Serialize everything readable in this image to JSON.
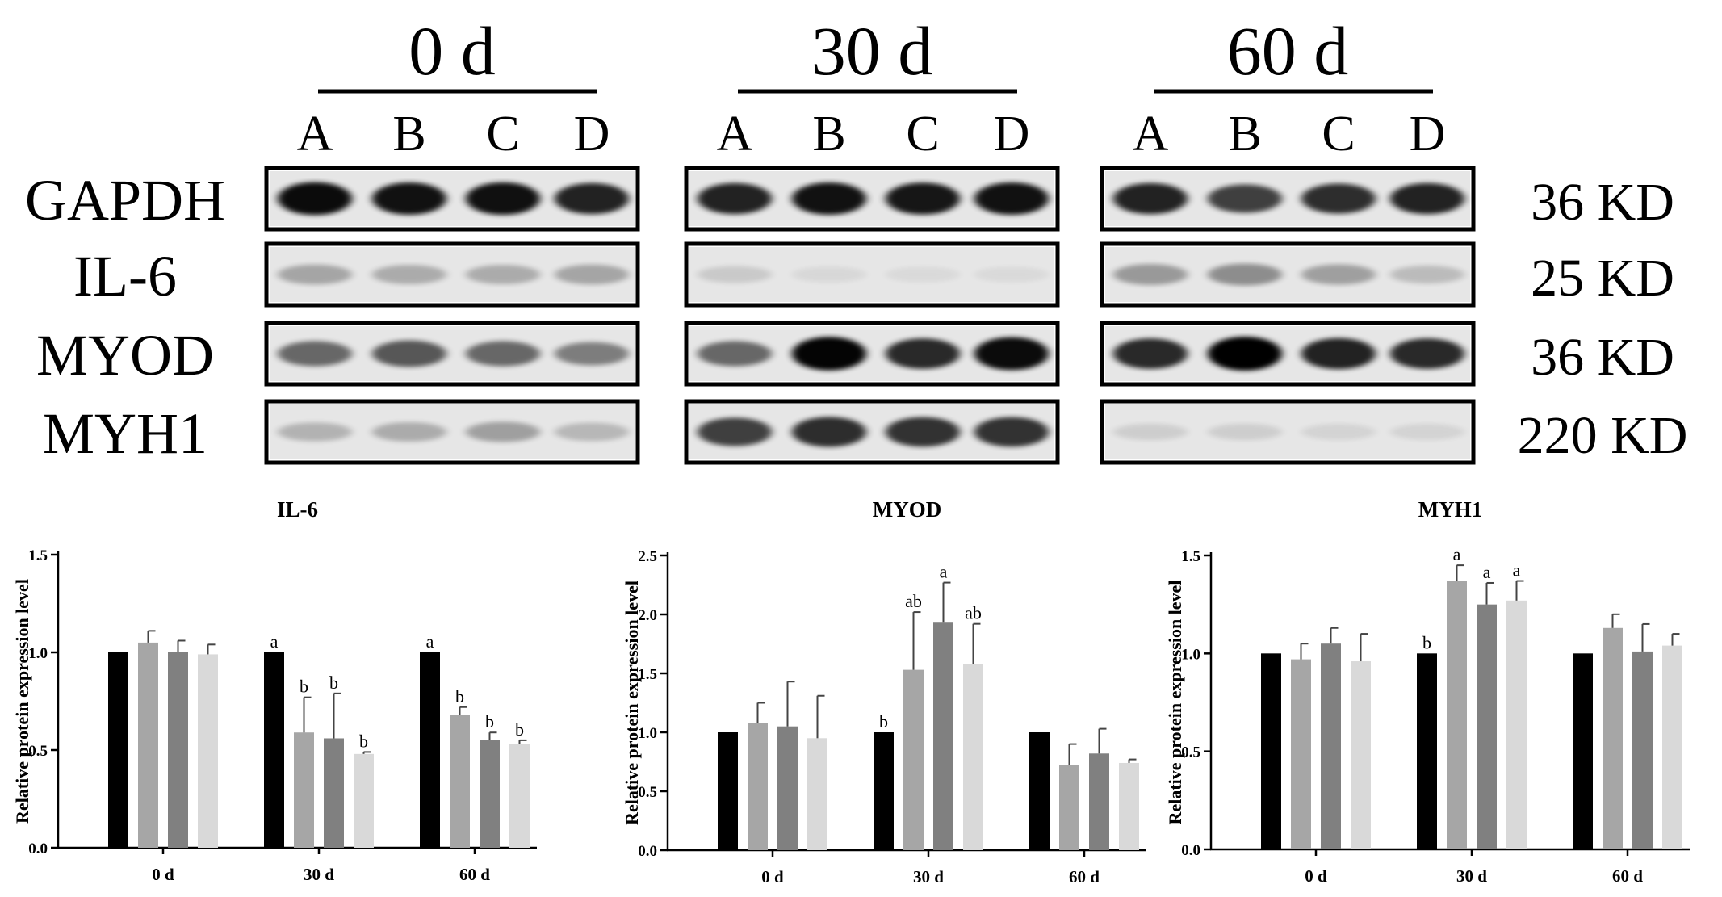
{
  "blot": {
    "timepoints": [
      "0 d",
      "30 d",
      "60 d"
    ],
    "lanes": [
      "A",
      "B",
      "C",
      "D"
    ],
    "proteins": [
      {
        "name": "GAPDH",
        "size": "36 KD"
      },
      {
        "name": "IL-6",
        "size": "25 KD"
      },
      {
        "name": "MYOD",
        "size": "36 KD"
      },
      {
        "name": "MYH1",
        "size": "220 KD"
      }
    ],
    "band_intensity": {
      "GAPDH": [
        [
          0.95,
          0.92,
          0.93,
          0.85
        ],
        [
          0.85,
          0.92,
          0.9,
          0.92
        ],
        [
          0.85,
          0.72,
          0.8,
          0.85
        ]
      ],
      "IL-6": [
        [
          0.28,
          0.25,
          0.25,
          0.28
        ],
        [
          0.12,
          0.06,
          0.05,
          0.05
        ],
        [
          0.33,
          0.38,
          0.3,
          0.18
        ]
      ],
      "MYOD": [
        [
          0.55,
          0.62,
          0.55,
          0.45
        ],
        [
          0.55,
          0.98,
          0.82,
          0.95
        ],
        [
          0.82,
          1.0,
          0.85,
          0.82
        ]
      ],
      "MYH1": [
        [
          0.22,
          0.25,
          0.3,
          0.2
        ],
        [
          0.72,
          0.8,
          0.78,
          0.78
        ],
        [
          0.1,
          0.1,
          0.08,
          0.08
        ]
      ]
    }
  },
  "colors": {
    "series": [
      "#000000",
      "#a6a6a6",
      "#808080",
      "#d9d9d9"
    ],
    "axis": "#000000",
    "band": "#000000"
  },
  "chart_data": [
    {
      "type": "bar",
      "title": "IL-6",
      "xlabel": "",
      "ylabel": "Relative protein expression level",
      "ylim": [
        0,
        1.5
      ],
      "yticks": [
        "0.0",
        "0.5",
        "1.0",
        "1.5"
      ],
      "yticks_values": [
        0,
        0.5,
        1.0,
        1.5
      ],
      "categories": [
        "0 d",
        "30 d",
        "60 d"
      ],
      "series": [
        {
          "values": [
            1.0,
            1.0,
            1.0
          ],
          "errors": [
            0,
            0,
            0
          ],
          "labels": [
            "",
            "a",
            "a"
          ]
        },
        {
          "values": [
            1.05,
            0.59,
            0.68
          ],
          "errors": [
            0.06,
            0.18,
            0.04
          ],
          "labels": [
            "",
            "b",
            "b"
          ]
        },
        {
          "values": [
            1.0,
            0.56,
            0.55
          ],
          "errors": [
            0.06,
            0.23,
            0.04
          ],
          "labels": [
            "",
            "b",
            "b"
          ]
        },
        {
          "values": [
            0.99,
            0.48,
            0.53
          ],
          "errors": [
            0.05,
            0.01,
            0.02
          ],
          "labels": [
            "",
            "b",
            "b"
          ]
        }
      ]
    },
    {
      "type": "bar",
      "title": "MYOD",
      "xlabel": "",
      "ylabel": "Relative protein expression level",
      "ylim": [
        0,
        2.5
      ],
      "yticks": [
        "0.0",
        "0.5",
        "1.0",
        "1.5",
        "2.0",
        "2.5"
      ],
      "yticks_values": [
        0,
        0.5,
        1.0,
        1.5,
        2.0,
        2.5
      ],
      "categories": [
        "0 d",
        "30 d",
        "60 d"
      ],
      "series": [
        {
          "values": [
            1.0,
            1.0,
            1.0
          ],
          "errors": [
            0,
            0,
            0
          ],
          "labels": [
            "",
            "b",
            ""
          ]
        },
        {
          "values": [
            1.08,
            1.53,
            0.72
          ],
          "errors": [
            0.17,
            0.49,
            0.18
          ],
          "labels": [
            "",
            "ab",
            ""
          ]
        },
        {
          "values": [
            1.05,
            1.93,
            0.82
          ],
          "errors": [
            0.38,
            0.34,
            0.21
          ],
          "labels": [
            "",
            "a",
            ""
          ]
        },
        {
          "values": [
            0.95,
            1.58,
            0.74
          ],
          "errors": [
            0.36,
            0.34,
            0.03
          ],
          "labels": [
            "",
            "ab",
            ""
          ]
        }
      ]
    },
    {
      "type": "bar",
      "title": "MYH1",
      "xlabel": "",
      "ylabel": "Relative protein expression level",
      "ylim": [
        0,
        1.5
      ],
      "yticks": [
        "0.0",
        "0.5",
        "1.0",
        "1.5"
      ],
      "yticks_values": [
        0,
        0.5,
        1.0,
        1.5
      ],
      "categories": [
        "0 d",
        "30 d",
        "60 d"
      ],
      "series": [
        {
          "values": [
            1.0,
            1.0,
            1.0
          ],
          "errors": [
            0,
            0,
            0
          ],
          "labels": [
            "",
            "b",
            ""
          ]
        },
        {
          "values": [
            0.97,
            1.37,
            1.13
          ],
          "errors": [
            0.08,
            0.08,
            0.07
          ],
          "labels": [
            "",
            "a",
            ""
          ]
        },
        {
          "values": [
            1.05,
            1.25,
            1.01
          ],
          "errors": [
            0.08,
            0.11,
            0.14
          ],
          "labels": [
            "",
            "a",
            ""
          ]
        },
        {
          "values": [
            0.96,
            1.27,
            1.04
          ],
          "errors": [
            0.14,
            0.1,
            0.06
          ],
          "labels": [
            "",
            "a",
            ""
          ]
        }
      ]
    }
  ]
}
